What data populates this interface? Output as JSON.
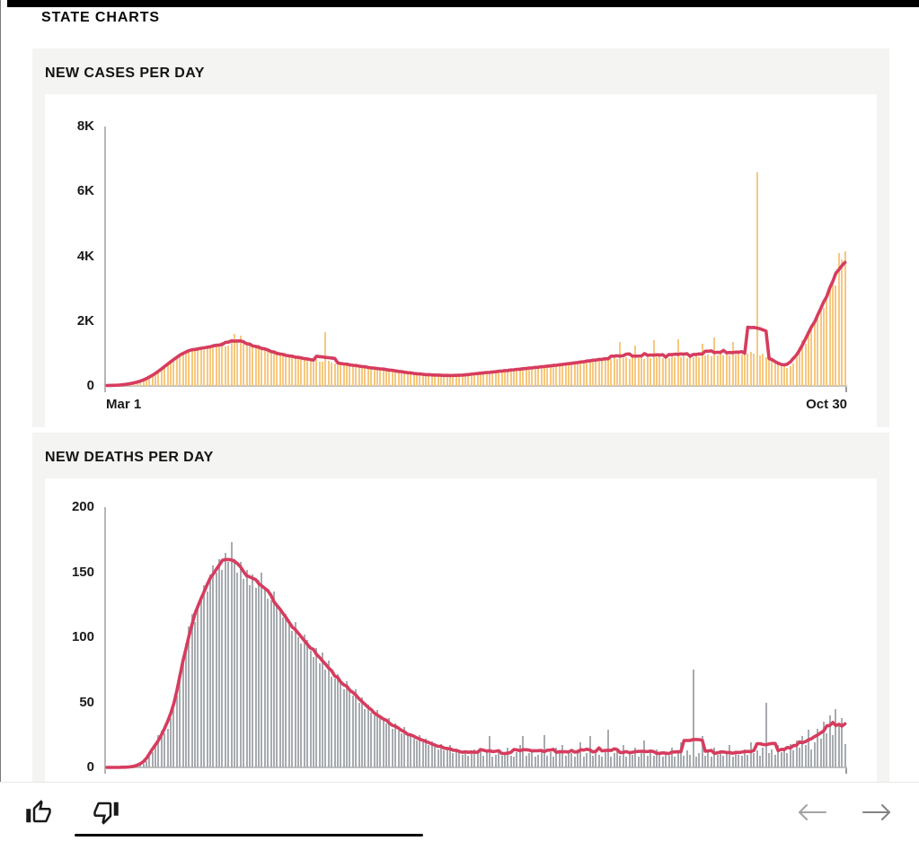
{
  "page": {
    "title": "STATE CHARTS"
  },
  "chart_data": [
    {
      "type": "bar",
      "title": "NEW CASES PER DAY",
      "x_start_label": "Mar 1",
      "x_end_label": "Oct 30",
      "xlabel": "",
      "ylabel": "",
      "ylim": [
        0,
        8000
      ],
      "y_tick_labels": [
        "8K",
        "6K",
        "4K",
        "2K",
        "0"
      ],
      "grid": false,
      "legend": "none",
      "bar_color": "#f7c87f",
      "line_color": "#d63c5e",
      "overlay_line": "7-day rolling average of daily new cases",
      "values": [
        10,
        12,
        15,
        18,
        25,
        32,
        40,
        55,
        70,
        90,
        115,
        140,
        170,
        210,
        260,
        320,
        380,
        450,
        520,
        600,
        680,
        750,
        820,
        890,
        950,
        1020,
        1080,
        1130,
        1100,
        1150,
        1180,
        1150,
        1100,
        1200,
        1250,
        1180,
        1300,
        1280,
        1350,
        1220,
        1250,
        1400,
        1600,
        1350,
        1550,
        1300,
        1250,
        1280,
        1180,
        1220,
        1260,
        1150,
        1180,
        1080,
        1020,
        1100,
        980,
        940,
        1010,
        900,
        950,
        920,
        880,
        900,
        850,
        820,
        870,
        800,
        780,
        820,
        760,
        740,
        1650,
        780,
        720,
        700,
        750,
        680,
        660,
        700,
        640,
        620,
        660,
        600,
        580,
        620,
        560,
        540,
        580,
        520,
        500,
        540,
        520,
        480,
        500,
        460,
        430,
        450,
        420,
        400,
        420,
        380,
        360,
        390,
        350,
        330,
        360,
        340,
        320,
        350,
        330,
        310,
        340,
        320,
        300,
        330,
        310,
        350,
        330,
        360,
        340,
        380,
        400,
        380,
        420,
        390,
        440,
        410,
        460,
        430,
        480,
        450,
        500,
        470,
        520,
        490,
        540,
        510,
        560,
        530,
        580,
        550,
        600,
        570,
        620,
        590,
        640,
        610,
        660,
        630,
        680,
        650,
        700,
        720,
        680,
        750,
        700,
        780,
        730,
        820,
        760,
        840,
        780,
        860,
        800,
        880,
        820,
        900,
        830,
        1350,
        850,
        880,
        820,
        900,
        1250,
        860,
        890,
        830,
        910,
        850,
        1400,
        880,
        920,
        860,
        900,
        850,
        930,
        880,
        1450,
        900,
        940,
        870,
        950,
        890,
        960,
        900,
        1300,
        940,
        980,
        920,
        1500,
        950,
        990,
        930,
        1000,
        950,
        1350,
        980,
        1020,
        960,
        1040,
        990,
        1060,
        1000,
        6600,
        950,
        1000,
        900,
        850,
        800,
        750,
        700,
        650,
        600,
        550,
        600,
        700,
        900,
        1200,
        1400,
        1300,
        1600,
        1800,
        2000,
        2200,
        2500,
        2400,
        2800,
        3000,
        3300,
        3100,
        4100,
        3900,
        4150
      ]
    },
    {
      "type": "bar",
      "title": "NEW DEATHS PER DAY",
      "xlabel": "",
      "ylabel": "",
      "ylim": [
        0,
        200
      ],
      "y_tick_labels": [
        "200",
        "150",
        "100",
        "50",
        "0"
      ],
      "grid": false,
      "legend": "none",
      "bar_color": "#a7abb0",
      "line_color": "#d63c5e",
      "overlay_line": "7-day rolling average of daily new deaths",
      "values": [
        0,
        0,
        0,
        0,
        0,
        0,
        0,
        0,
        1,
        0,
        1,
        2,
        3,
        5,
        8,
        12,
        18,
        25,
        28,
        26,
        30,
        38,
        45,
        55,
        68,
        80,
        95,
        108,
        118,
        112,
        125,
        130,
        140,
        135,
        148,
        155,
        150,
        160,
        152,
        165,
        158,
        173,
        160,
        150,
        158,
        145,
        152,
        140,
        148,
        138,
        144,
        150,
        138,
        130,
        128,
        135,
        125,
        120,
        115,
        118,
        110,
        105,
        112,
        100,
        95,
        102,
        98,
        90,
        85,
        92,
        80,
        88,
        75,
        82,
        70,
        68,
        72,
        65,
        60,
        66,
        58,
        55,
        60,
        50,
        54,
        45,
        48,
        42,
        40,
        44,
        38,
        36,
        34,
        38,
        30,
        34,
        28,
        26,
        31,
        24,
        26,
        22,
        21,
        25,
        19,
        22,
        17,
        20,
        16,
        14,
        18,
        13,
        15,
        17,
        11,
        14,
        12,
        10,
        13,
        9,
        12,
        14,
        11,
        14,
        9,
        12,
        24,
        8,
        10,
        13,
        9,
        11,
        15,
        9,
        8,
        12,
        17,
        24,
        9,
        11,
        14,
        8,
        10,
        13,
        25,
        9,
        12,
        8,
        15,
        11,
        17,
        9,
        13,
        11,
        8,
        14,
        19,
        8,
        11,
        24,
        9,
        13,
        10,
        8,
        12,
        29,
        8,
        11,
        14,
        9,
        17,
        8,
        12,
        10,
        15,
        8,
        11,
        21,
        9,
        13,
        9,
        14,
        11,
        8,
        12,
        9,
        15,
        8,
        11,
        19,
        9,
        13,
        10,
        75,
        8,
        11,
        24,
        9,
        12,
        8,
        15,
        10,
        13,
        9,
        11,
        17,
        8,
        12,
        10,
        9,
        14,
        10,
        19,
        11,
        13,
        9,
        15,
        50,
        11,
        14,
        10,
        17,
        12,
        15,
        11,
        18,
        13,
        21,
        15,
        24,
        17,
        29,
        14,
        19,
        30,
        22,
        35,
        26,
        40,
        25,
        45,
        33,
        38,
        18
      ]
    }
  ],
  "footer": {
    "thumbs_up_icon": "thumbs-up",
    "thumbs_down_icon": "thumbs-down",
    "prev_icon": "arrow-left",
    "next_icon": "arrow-right",
    "arrow_left_color": "#a3a3a3",
    "arrow_right_color": "#838383"
  },
  "colors": {
    "panel_background": "#f4f4f2",
    "axis_line": "#b6b6b6",
    "baseline": "#c3c3c1",
    "top_bar": "#000000"
  }
}
